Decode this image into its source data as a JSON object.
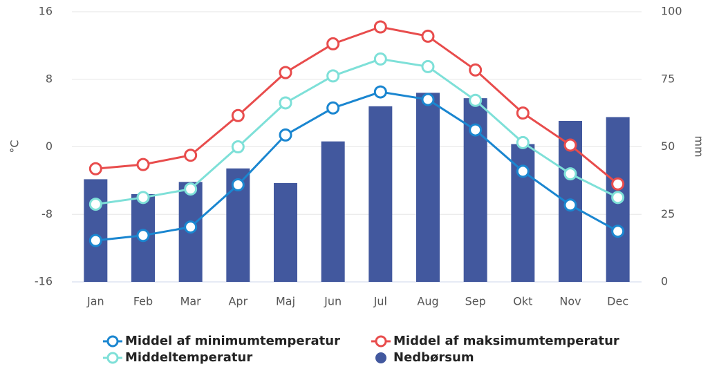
{
  "chart_data": {
    "type": "line",
    "categories": [
      "Jan",
      "Feb",
      "Mar",
      "Apr",
      "Maj",
      "Jun",
      "Jul",
      "Aug",
      "Sep",
      "Okt",
      "Nov",
      "Dec"
    ],
    "ylabel": "°C",
    "y2label": "mm",
    "ylim": [
      -16,
      16
    ],
    "yticks": [
      -16,
      -8,
      0,
      8,
      16
    ],
    "y2lim": [
      0,
      100
    ],
    "y2ticks": [
      0,
      25,
      50,
      75,
      100
    ],
    "grid": true,
    "series": [
      {
        "name": "Middel af minimumtemperatur",
        "type": "line",
        "color": "#1a86d0",
        "values": [
          -11.1,
          -10.5,
          -9.5,
          -4.5,
          1.4,
          4.6,
          6.5,
          5.6,
          2.0,
          -2.9,
          -6.9,
          -10.0
        ]
      },
      {
        "name": "Middeltemperatur",
        "type": "line",
        "color": "#7ee0d8",
        "values": [
          -6.8,
          -6.0,
          -5.0,
          0,
          5.2,
          8.4,
          10.4,
          9.5,
          5.5,
          0.5,
          -3.2,
          -6.0
        ]
      },
      {
        "name": "Middel af maksimumtemperatur",
        "type": "line",
        "color": "#e84c4c",
        "values": [
          -2.6,
          -2.1,
          -1.0,
          3.7,
          8.8,
          12.2,
          14.2,
          13.1,
          9.1,
          4.0,
          0.2,
          -4.4
        ]
      },
      {
        "name": "Nedbørsum",
        "type": "bar",
        "axis": "y2",
        "color": "#42589e",
        "values": [
          38,
          32.5,
          37,
          42,
          36.6,
          52,
          65,
          70,
          68,
          51,
          59.6,
          61
        ]
      }
    ]
  }
}
